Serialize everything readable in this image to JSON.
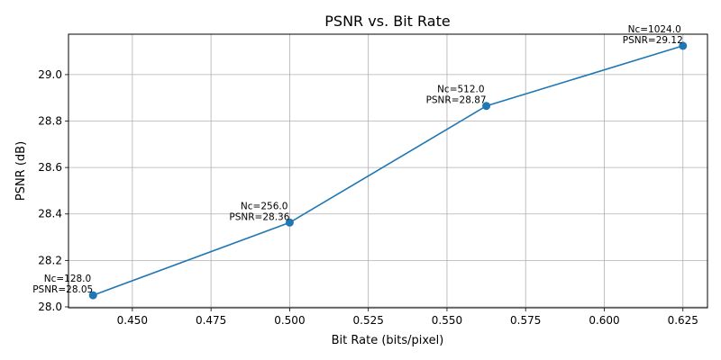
{
  "chart_data": {
    "type": "line",
    "title": "PSNR vs. Bit Rate",
    "xlabel": "Bit Rate (bits/pixel)",
    "ylabel": "PSNR (dB)",
    "xlim": [
      0.4297,
      0.6328
    ],
    "ylim": [
      27.996,
      29.174
    ],
    "xticks": [
      0.45,
      0.475,
      0.5,
      0.525,
      0.55,
      0.575,
      0.6,
      0.625
    ],
    "xtick_labels": [
      "0.450",
      "0.475",
      "0.500",
      "0.525",
      "0.550",
      "0.575",
      "0.600",
      "0.625"
    ],
    "yticks": [
      28.0,
      28.2,
      28.4,
      28.6,
      28.8,
      29.0
    ],
    "ytick_labels": [
      "28.0",
      "28.2",
      "28.4",
      "28.6",
      "28.8",
      "29.0"
    ],
    "grid": true,
    "series": [
      {
        "color": "#1f77b4",
        "x": [
          0.4375,
          0.5,
          0.5625,
          0.625
        ],
        "y": [
          28.05,
          28.363,
          28.865,
          29.124
        ]
      }
    ],
    "annotations": [
      {
        "line1": "Nc=128.0",
        "line2": "PSNR=28.05"
      },
      {
        "line1": "Nc=256.0",
        "line2": "PSNR=28.36"
      },
      {
        "line1": "Nc=512.0",
        "line2": "PSNR=28.87"
      },
      {
        "line1": "Nc=1024.0",
        "line2": "PSNR=29.12"
      }
    ]
  }
}
